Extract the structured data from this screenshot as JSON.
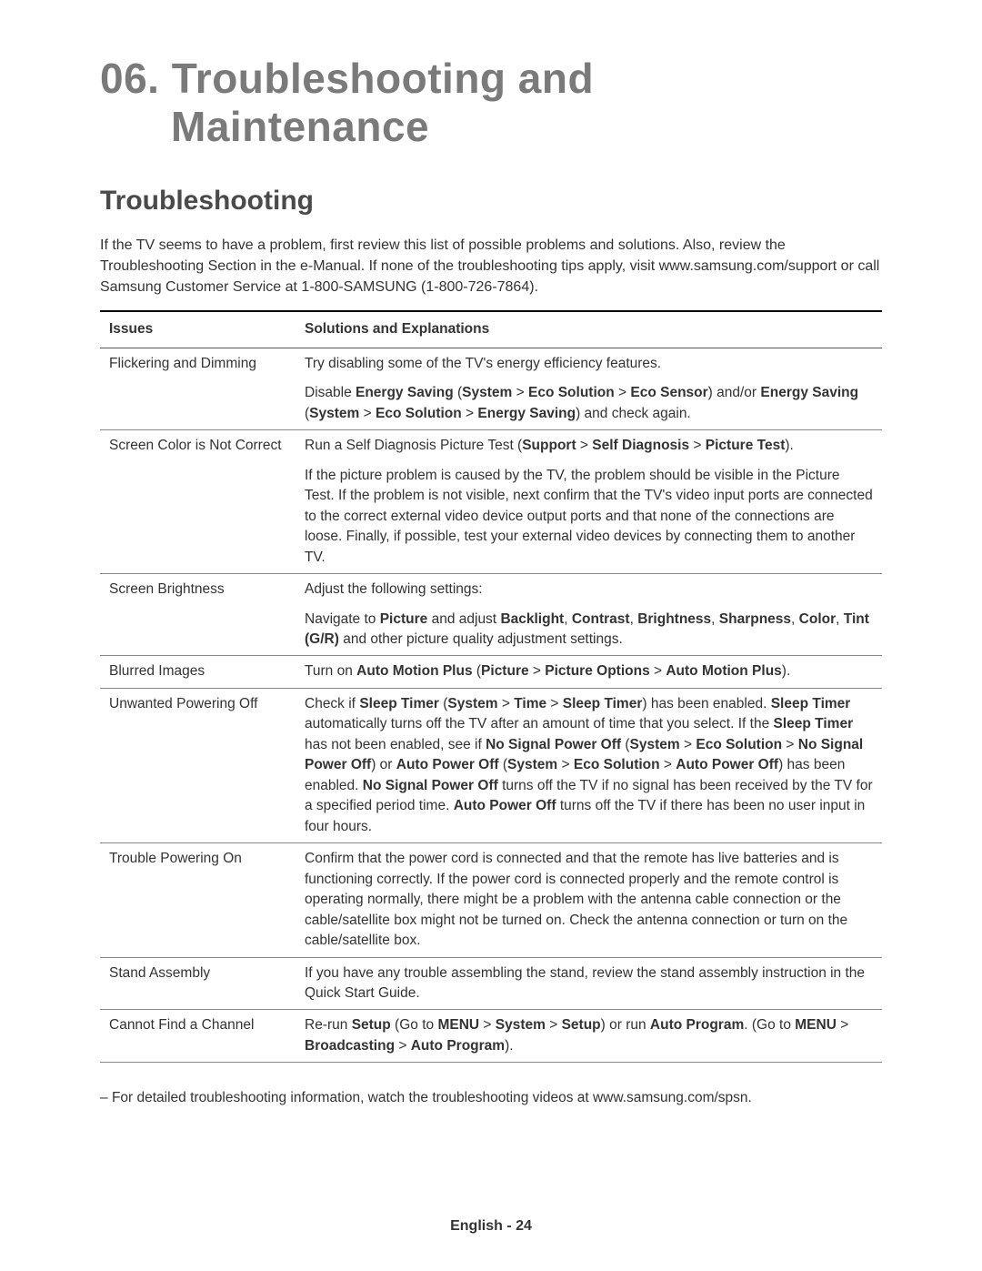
{
  "title_line1": "06. Troubleshooting and",
  "title_line2": "Maintenance",
  "section_heading": "Troubleshooting",
  "intro": "If the TV seems to have a problem, first review this list of possible problems and solutions. Also, review the Troubleshooting Section in the e-Manual. If none of the troubleshooting tips apply, visit www.samsung.com/support or call Samsung Customer Service at 1-800-SAMSUNG (1-800-726-7864).",
  "table": {
    "header_issues": "Issues",
    "header_solutions": "Solutions and Explanations",
    "rows": [
      {
        "issue": "Flickering and Dimming",
        "solution_html": "Try disabling some of the TV's energy efficiency features.<div class='sub'>Disable <b>Energy Saving</b> (<b>System</b> > <b>Eco Solution</b> > <b>Eco Sensor</b>) and/or <b>Energy Saving</b> (<b>System</b> > <b>Eco Solution</b> > <b>Energy Saving</b>) and check again.</div>"
      },
      {
        "issue": "Screen Color is Not Correct",
        "solution_html": "Run a Self Diagnosis Picture Test (<b>Support</b> > <b>Self Diagnosis</b> > <b>Picture Test</b>).<div class='sub'>If the picture problem is caused by the TV, the problem should be visible in the Picture Test. If the problem is not visible, next confirm that the TV's video input ports are connected to the correct external video device output ports and that none of the connections are loose. Finally, if possible, test your external video devices by connecting them to another TV.</div>"
      },
      {
        "issue": "Screen Brightness",
        "solution_html": "Adjust the following settings:<div class='sub'>Navigate to <b>Picture</b> and adjust <b>Backlight</b>, <b>Contrast</b>, <b>Brightness</b>, <b>Sharpness</b>, <b>Color</b>, <b>Tint (G/R)</b> and other picture quality adjustment settings.</div>"
      },
      {
        "issue": "Blurred Images",
        "solution_html": "Turn on <b>Auto Motion Plus</b> (<b>Picture</b> > <b>Picture Options</b> > <b>Auto Motion Plus</b>)."
      },
      {
        "issue": "Unwanted Powering Off",
        "solution_html": "Check if <b>Sleep Timer</b> (<b>System</b> > <b>Time</b> > <b>Sleep Timer</b>) has been enabled. <b>Sleep Timer</b> automatically turns off the TV after an amount of time that you select. If the <b>Sleep Timer</b> has not been enabled, see if <b>No Signal Power Off</b> (<b>System</b> > <b>Eco Solution</b> > <b>No Signal Power Off</b>) or <b>Auto Power Off</b> (<b>System</b> > <b>Eco Solution</b> > <b>Auto Power Off</b>) has been enabled. <b>No Signal Power Off</b> turns off the TV if no signal has been received by the TV for a specified period time. <b>Auto Power Off</b> turns off the TV if there has been no user input in four hours."
      },
      {
        "issue": "Trouble Powering On",
        "solution_html": "Confirm that the power cord is connected and that the remote has live batteries and is functioning correctly. If the power cord is connected properly and the remote control is operating normally, there might be a problem with the antenna cable connection or the cable/satellite box might not be turned on. Check the antenna connection or turn on the cable/satellite box."
      },
      {
        "issue": "Stand Assembly",
        "solution_html": "If you have any trouble assembling the stand, review the stand assembly instruction in the Quick Start Guide."
      },
      {
        "issue": "Cannot Find a Channel",
        "solution_html": "Re-run <b>Setup</b> (Go to <b>MENU</b> > <b>System</b> > <b>Setup</b>) or run <b>Auto Program</b>. (Go to <b>MENU</b> > <b>Broadcasting</b> > <b>Auto Program</b>)."
      }
    ]
  },
  "note": "For detailed troubleshooting information, watch the troubleshooting videos at www.samsung.com/spsn.",
  "footer": "English - 24"
}
